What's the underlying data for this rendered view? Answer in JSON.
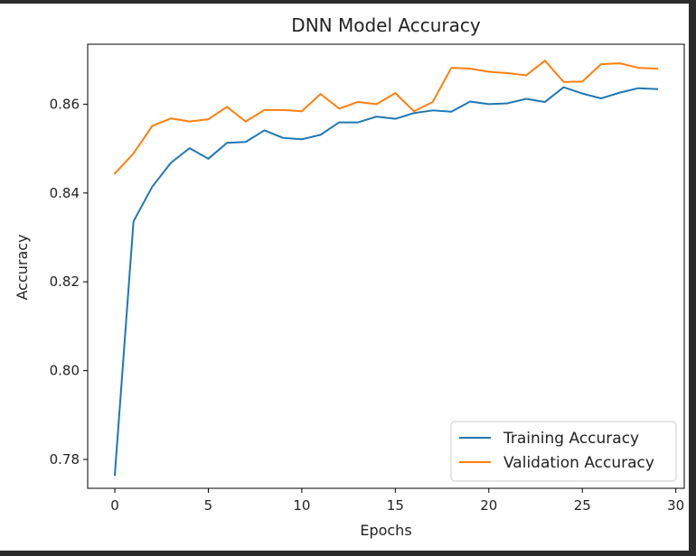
{
  "chart_data": {
    "type": "line",
    "title": "DNN Model Accuracy",
    "xlabel": "Epochs",
    "ylabel": "Accuracy",
    "xlim": [
      -1.45,
      30.45
    ],
    "ylim": [
      0.7735,
      0.8735
    ],
    "xticks": [
      0,
      5,
      10,
      15,
      20,
      25,
      30
    ],
    "yticks": [
      0.78,
      0.8,
      0.82,
      0.84,
      0.86
    ],
    "ytick_labels": [
      "0.78",
      "0.80",
      "0.82",
      "0.84",
      "0.86"
    ],
    "grid": false,
    "legend_position": "lower-right",
    "x": [
      0,
      1,
      2,
      3,
      4,
      5,
      6,
      7,
      8,
      9,
      10,
      11,
      12,
      13,
      14,
      15,
      16,
      17,
      18,
      19,
      20,
      21,
      22,
      23,
      24,
      25,
      26,
      27,
      28,
      29
    ],
    "series": [
      {
        "name": "Training Accuracy",
        "color": "#1f77b4",
        "values": [
          0.7765,
          0.8336,
          0.8414,
          0.8468,
          0.8501,
          0.8477,
          0.8513,
          0.8515,
          0.8541,
          0.8524,
          0.8521,
          0.8531,
          0.8559,
          0.8559,
          0.8572,
          0.8567,
          0.858,
          0.8586,
          0.8583,
          0.8606,
          0.86,
          0.8602,
          0.8612,
          0.8605,
          0.8638,
          0.8624,
          0.8613,
          0.8626,
          0.8636,
          0.8634
        ]
      },
      {
        "name": "Validation Accuracy",
        "color": "#ff7f0e",
        "values": [
          0.8444,
          0.8489,
          0.8551,
          0.8568,
          0.8561,
          0.8566,
          0.8594,
          0.8561,
          0.8587,
          0.8587,
          0.8584,
          0.8623,
          0.859,
          0.8605,
          0.86,
          0.8625,
          0.8584,
          0.8605,
          0.8682,
          0.868,
          0.8673,
          0.867,
          0.8665,
          0.8698,
          0.865,
          0.8651,
          0.869,
          0.8692,
          0.8682,
          0.868
        ]
      }
    ]
  }
}
